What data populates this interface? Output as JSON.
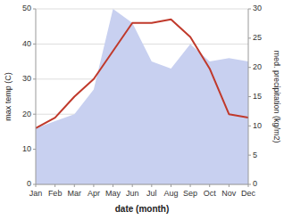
{
  "chart_data": {
    "type": "line",
    "categories": [
      "Jan",
      "Feb",
      "Mar",
      "Apr",
      "May",
      "Jun",
      "Jul",
      "Aug",
      "Sep",
      "Oct",
      "Nov",
      "Dec"
    ],
    "series": [
      {
        "type": "area",
        "color": "#c8d0f0",
        "values": [
          16,
          18,
          20,
          27,
          50,
          46,
          35,
          33,
          40,
          35,
          36,
          35
        ]
      },
      {
        "type": "line",
        "color": "#c0392b",
        "values": [
          16,
          19,
          25,
          30,
          38,
          46,
          46,
          47,
          42,
          33,
          20,
          19
        ]
      }
    ],
    "xlabel": "date (month)",
    "ylabel": "max temp (C)",
    "y2label": "med. precipitation (kg/m2)",
    "ylim": [
      0,
      50
    ],
    "yticks": [
      0,
      10,
      20,
      30,
      40,
      50
    ],
    "y2lim": [
      0,
      30
    ],
    "y2ticks": [
      0,
      5,
      10,
      15,
      20,
      25,
      30
    ],
    "grid": true
  }
}
